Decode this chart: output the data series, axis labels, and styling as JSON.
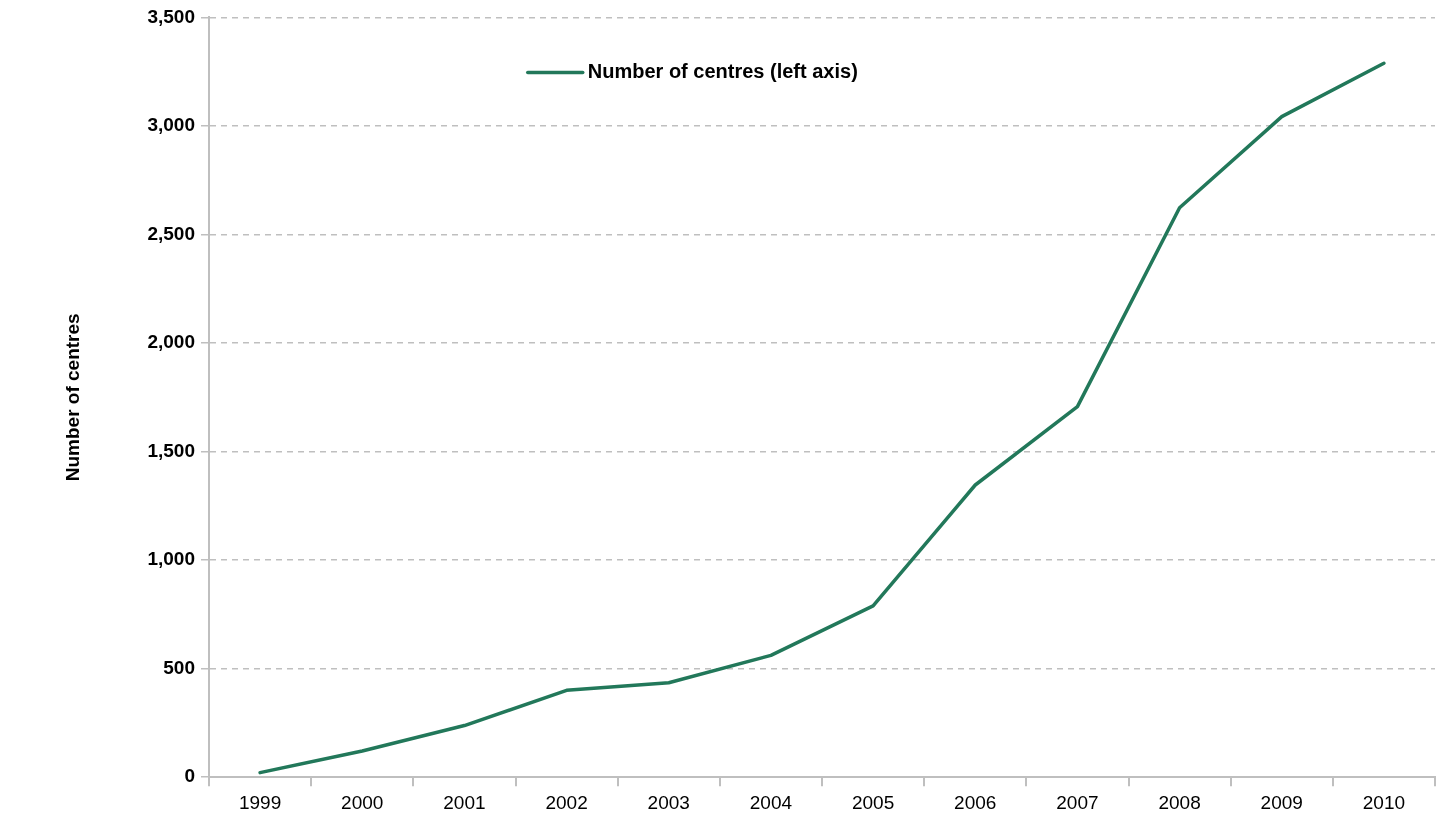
{
  "chart_data": {
    "type": "line",
    "ylabel": "Number of centres",
    "categories": [
      "1999",
      "2000",
      "2001",
      "2002",
      "2003",
      "2004",
      "2005",
      "2006",
      "2007",
      "2008",
      "2009",
      "2010"
    ],
    "series": [
      {
        "name": "Number of centres (left axis)",
        "color": "#22785a",
        "values": [
          21,
          121,
          238,
          400,
          435,
          561,
          789,
          1346,
          1707,
          2623,
          3043,
          3289
        ]
      }
    ],
    "ylim": [
      0,
      3500
    ],
    "yticks": [
      0,
      500,
      {
        "value": 1000,
        "label": "1,000"
      },
      {
        "value": 1500,
        "label": "1,500"
      },
      {
        "value": 2000,
        "label": "2,000"
      },
      {
        "value": 2500,
        "label": "2,500"
      },
      {
        "value": 3000,
        "label": "3,000"
      },
      {
        "value": 3500,
        "label": "3,500"
      }
    ],
    "grid": "y",
    "legend": "top",
    "marker": "none"
  }
}
